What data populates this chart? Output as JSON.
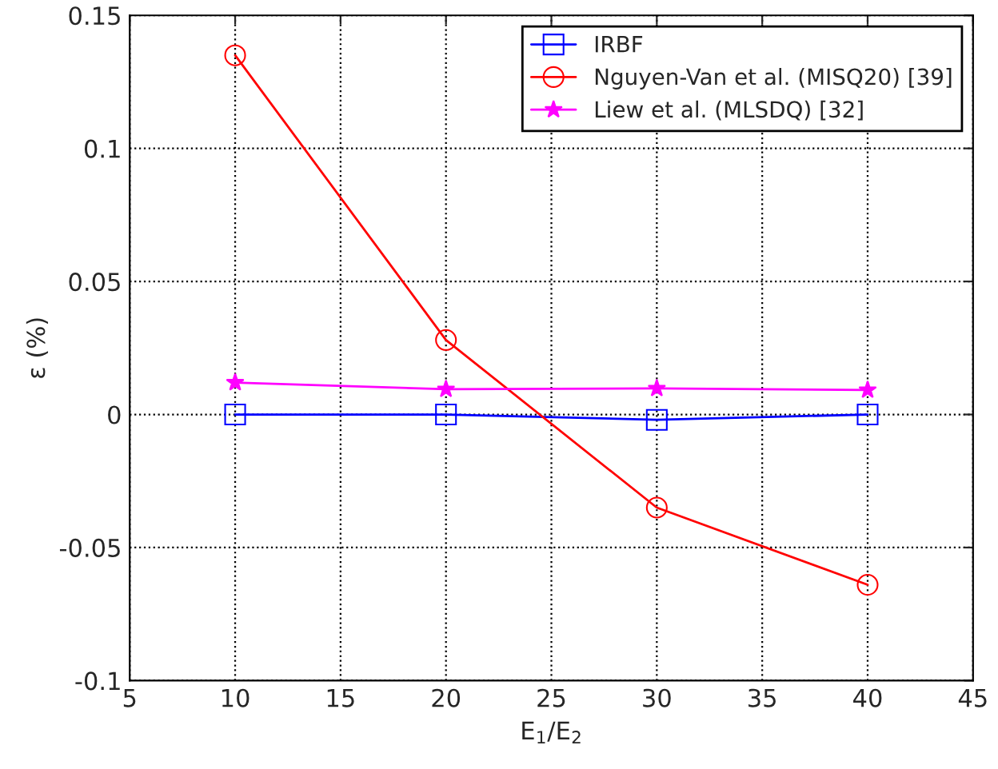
{
  "chart_data": {
    "type": "line",
    "xlabel": "E$_{1}$/E$_{2}$",
    "ylabel": "ε (%)",
    "x": [
      10,
      20,
      30,
      40
    ],
    "series": [
      {
        "name": "IRBF",
        "color": "#0000ff",
        "marker": "square",
        "values": [
          0,
          0,
          -0.002,
          0
        ]
      },
      {
        "name": "Nguyen-Van et al. (MISQ20) [39]",
        "color": "#ff0000",
        "marker": "circle",
        "values": [
          0.135,
          0.028,
          -0.035,
          -0.064
        ]
      },
      {
        "name": "Liew et al. (MLSDQ) [32]",
        "color": "#ff00ff",
        "marker": "star",
        "values": [
          0.012,
          0.0095,
          0.0098,
          0.0092
        ]
      }
    ],
    "xlim": [
      5,
      45
    ],
    "xticks": [
      5,
      10,
      15,
      20,
      25,
      30,
      35,
      40,
      45
    ],
    "ylim": [
      -0.1,
      0.15
    ],
    "yticks": [
      -0.1,
      -0.05,
      0,
      0.05,
      0.1,
      0.15
    ],
    "grid": true,
    "legend": "top right",
    "line_style": "solid"
  }
}
